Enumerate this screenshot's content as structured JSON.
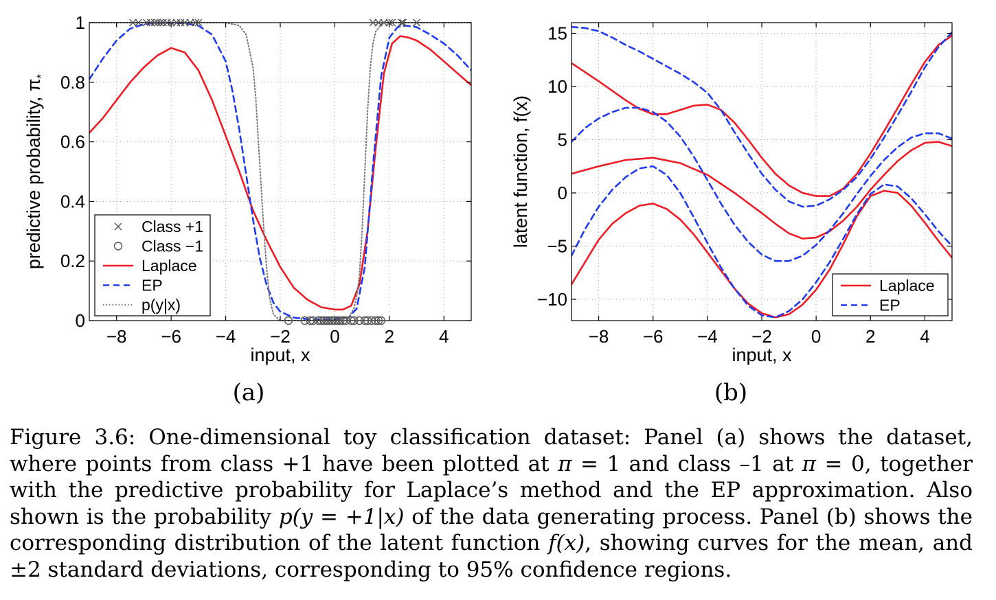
{
  "colors": {
    "laplace": "#ee1c25",
    "ep": "#1f3cf0",
    "true_prob": "#777777",
    "markers": "#555555"
  },
  "chart_data": [
    {
      "type": "line",
      "panel_label": "(a)",
      "xlabel": "input, x",
      "ylabel": "predictive probability, π",
      "ylabel_subscript": "*",
      "xlim": [
        -9,
        5
      ],
      "ylim": [
        0,
        1
      ],
      "xticks": [
        -8,
        -6,
        -4,
        -2,
        0,
        2,
        4
      ],
      "xtick_labels": [
        "−8",
        "−6",
        "−4",
        "−2",
        "0",
        "2",
        "4"
      ],
      "yticks": [
        0,
        0.2,
        0.4,
        0.6,
        0.8,
        1
      ],
      "ytick_labels": [
        "0",
        "0.2",
        "0.4",
        "0.6",
        "0.8",
        "1"
      ],
      "grid": true,
      "legend": {
        "placement": "bottom-left",
        "entries": [
          {
            "label": "Class +1",
            "style": "cross-marker"
          },
          {
            "label": "Class −1",
            "style": "circle-marker"
          },
          {
            "label": "Laplace",
            "style": "solid-red"
          },
          {
            "label": "EP",
            "style": "dashed-blue"
          },
          {
            "label": "p(y|x)",
            "style": "dotted-gray"
          }
        ]
      },
      "series": [
        {
          "name": "Laplace",
          "style": "solid-red",
          "x": [
            -9,
            -8.5,
            -8,
            -7.5,
            -7,
            -6.5,
            -6,
            -5.5,
            -5,
            -4.5,
            -4,
            -3.5,
            -3,
            -2.5,
            -2,
            -1.5,
            -1,
            -0.5,
            0,
            0.3,
            0.6,
            0.9,
            1.2,
            1.5,
            1.8,
            2.1,
            2.4,
            2.7,
            3,
            3.5,
            4,
            4.5,
            5
          ],
          "y": [
            0.63,
            0.68,
            0.74,
            0.8,
            0.85,
            0.89,
            0.915,
            0.9,
            0.84,
            0.74,
            0.62,
            0.5,
            0.37,
            0.27,
            0.18,
            0.11,
            0.07,
            0.045,
            0.037,
            0.037,
            0.05,
            0.12,
            0.3,
            0.58,
            0.83,
            0.93,
            0.955,
            0.95,
            0.94,
            0.91,
            0.87,
            0.83,
            0.79
          ]
        },
        {
          "name": "EP",
          "style": "dashed-blue",
          "x": [
            -9,
            -8.5,
            -8,
            -7.5,
            -7,
            -6.5,
            -6,
            -5.5,
            -5,
            -4.5,
            -4,
            -3.75,
            -3.5,
            -3.25,
            -3,
            -2.75,
            -2.5,
            -2.25,
            -2,
            -1.5,
            -1,
            -0.5,
            0,
            0.5,
            0.8,
            1.1,
            1.4,
            1.7,
            2,
            2.3,
            2.6,
            3,
            3.5,
            4,
            4.5,
            5
          ],
          "y": [
            0.81,
            0.88,
            0.94,
            0.98,
            0.995,
            0.999,
            0.999,
            0.998,
            0.99,
            0.96,
            0.87,
            0.77,
            0.64,
            0.49,
            0.34,
            0.21,
            0.12,
            0.06,
            0.03,
            0.01,
            0.005,
            0.004,
            0.006,
            0.01,
            0.04,
            0.18,
            0.52,
            0.82,
            0.95,
            0.985,
            0.99,
            0.985,
            0.96,
            0.93,
            0.89,
            0.84
          ]
        },
        {
          "name": "p(y|x)",
          "style": "dotted-gray",
          "x": [
            -9,
            -4.5,
            -4,
            -3.5,
            -3.25,
            -3,
            -2.9,
            -2.8,
            -2.7,
            -2.6,
            -2.5,
            -2.4,
            -2.25,
            -2,
            -1,
            0,
            0.5,
            0.7,
            0.8,
            0.9,
            1,
            1.1,
            1.2,
            1.3,
            1.4,
            1.5,
            1.75,
            2,
            5
          ],
          "y": [
            1,
            1,
            1,
            0.99,
            0.96,
            0.85,
            0.75,
            0.6,
            0.45,
            0.3,
            0.18,
            0.08,
            0.02,
            0,
            0,
            0,
            0.01,
            0.04,
            0.08,
            0.15,
            0.3,
            0.5,
            0.7,
            0.85,
            0.93,
            0.97,
            1,
            1,
            1
          ]
        },
        {
          "name": "Class +1",
          "style": "cross-marker",
          "x": [
            -7.4,
            -7.2,
            -6.9,
            -6.75,
            -6.6,
            -6.5,
            -6.4,
            -6.3,
            -6.15,
            -6.0,
            -5.8,
            -5.65,
            -5.5,
            -5.3,
            -5.1,
            -5.0,
            1.4,
            1.6,
            1.8,
            2.0,
            2.1,
            2.45,
            2.5,
            3.0
          ],
          "y": [
            1,
            1,
            1,
            1,
            1,
            1,
            1,
            1,
            1,
            1,
            1,
            1,
            1,
            1,
            1,
            1,
            1,
            1,
            1,
            1,
            1,
            1,
            1,
            1
          ]
        },
        {
          "name": "Class −1",
          "style": "circle-marker",
          "x": [
            -1.7,
            -1.1,
            -0.9,
            -0.8,
            -0.6,
            -0.5,
            -0.4,
            -0.3,
            -0.2,
            -0.1,
            0.0,
            0.1,
            0.2,
            0.3,
            0.4,
            0.6,
            0.7,
            0.9,
            1.1,
            1.2,
            1.35,
            1.5,
            1.6,
            1.7
          ],
          "y": [
            0,
            0,
            0,
            0,
            0,
            0,
            0,
            0,
            0,
            0,
            0,
            0,
            0,
            0,
            0,
            0,
            0,
            0,
            0,
            0,
            0,
            0,
            0,
            0
          ]
        }
      ]
    },
    {
      "type": "line",
      "panel_label": "(b)",
      "xlabel": "input, x",
      "ylabel": "latent function, f(x)",
      "xlim": [
        -9,
        5
      ],
      "ylim": [
        -12,
        16
      ],
      "xticks": [
        -8,
        -6,
        -4,
        -2,
        0,
        2,
        4
      ],
      "xtick_labels": [
        "−8",
        "−6",
        "−4",
        "−2",
        "0",
        "2",
        "4"
      ],
      "yticks": [
        -10,
        -5,
        0,
        5,
        10,
        15
      ],
      "ytick_labels": [
        "−10",
        "−5",
        "0",
        "5",
        "10",
        "15"
      ],
      "grid": true,
      "legend": {
        "placement": "bottom-right",
        "entries": [
          {
            "label": "Laplace",
            "style": "solid-red"
          },
          {
            "label": "EP",
            "style": "dashed-blue"
          }
        ]
      },
      "series": [
        {
          "name": "Laplace",
          "style": "solid-red",
          "role": "upper",
          "x": [
            -9,
            -8,
            -7,
            -6.5,
            -6,
            -5.5,
            -5,
            -4.5,
            -4,
            -3.5,
            -3,
            -2.5,
            -2,
            -1.5,
            -1,
            -0.5,
            0,
            0.5,
            1,
            1.5,
            2,
            2.5,
            3,
            3.5,
            4,
            4.5,
            5
          ],
          "y": [
            12.2,
            10.5,
            8.7,
            7.9,
            7.4,
            7.4,
            7.8,
            8.2,
            8.3,
            7.8,
            6.6,
            5.0,
            3.3,
            1.8,
            0.7,
            0.0,
            -0.3,
            -0.3,
            0.4,
            1.8,
            3.7,
            5.8,
            8.0,
            10.2,
            12.3,
            13.9,
            14.8
          ]
        },
        {
          "name": "Laplace",
          "style": "solid-red",
          "role": "mean",
          "x": [
            -9,
            -8,
            -7,
            -6,
            -5,
            -4,
            -3,
            -2,
            -1.5,
            -1,
            -0.5,
            0,
            0.5,
            1,
            1.5,
            2,
            2.5,
            3,
            3.5,
            4,
            4.5,
            5
          ],
          "y": [
            1.8,
            2.5,
            3.1,
            3.3,
            2.8,
            1.7,
            0.0,
            -1.9,
            -2.9,
            -3.8,
            -4.3,
            -4.2,
            -3.6,
            -2.6,
            -1.3,
            0.3,
            1.7,
            3.0,
            4.0,
            4.7,
            4.8,
            4.4
          ]
        },
        {
          "name": "Laplace",
          "style": "solid-red",
          "role": "lower",
          "x": [
            -9,
            -8.5,
            -8,
            -7.5,
            -7,
            -6.5,
            -6,
            -5.5,
            -5,
            -4.5,
            -4,
            -3.5,
            -3,
            -2.5,
            -2,
            -1.5,
            -1,
            -0.5,
            0,
            0.5,
            1,
            1.5,
            2,
            2.5,
            3,
            3.5,
            4,
            4.5,
            5
          ],
          "y": [
            -8.6,
            -6.5,
            -4.4,
            -2.9,
            -1.9,
            -1.2,
            -1.0,
            -1.5,
            -2.5,
            -3.9,
            -5.6,
            -7.3,
            -9.0,
            -10.4,
            -11.3,
            -11.7,
            -11.4,
            -10.5,
            -9.1,
            -7.2,
            -4.8,
            -2.2,
            -0.3,
            0.2,
            0.0,
            -1.2,
            -2.8,
            -4.5,
            -6.1
          ]
        },
        {
          "name": "EP",
          "style": "dashed-blue",
          "role": "upper",
          "x": [
            -9,
            -8.5,
            -8,
            -7.5,
            -7,
            -6.5,
            -6,
            -5.5,
            -5,
            -4.5,
            -4,
            -3.5,
            -3,
            -2.5,
            -2,
            -1.5,
            -1,
            -0.5,
            0,
            0.5,
            1,
            1.5,
            2,
            2.5,
            3,
            3.5,
            4,
            4.5,
            5
          ],
          "y": [
            15.6,
            15.5,
            15.2,
            14.6,
            13.9,
            13.3,
            12.6,
            11.9,
            11.2,
            10.4,
            9.4,
            7.8,
            5.7,
            3.7,
            1.8,
            0.3,
            -0.8,
            -1.3,
            -1.2,
            -0.6,
            0.3,
            1.5,
            3.2,
            5.2,
            7.3,
            9.5,
            11.8,
            13.7,
            15.1
          ]
        },
        {
          "name": "EP",
          "style": "dashed-blue",
          "role": "mean",
          "x": [
            -9,
            -8.5,
            -8,
            -7.5,
            -7,
            -6.5,
            -6,
            -5.5,
            -5,
            -4.5,
            -4,
            -3.5,
            -3,
            -2.5,
            -2,
            -1.5,
            -1,
            -0.5,
            0,
            0.5,
            1,
            1.5,
            2,
            2.5,
            3,
            3.5,
            4,
            4.5,
            5
          ],
          "y": [
            4.8,
            6.1,
            7.0,
            7.6,
            8.0,
            8.0,
            7.6,
            6.7,
            5.3,
            3.4,
            1.2,
            -1.0,
            -3.0,
            -4.6,
            -5.8,
            -6.4,
            -6.4,
            -5.9,
            -4.9,
            -3.5,
            -1.9,
            -0.1,
            1.6,
            3.1,
            4.3,
            5.2,
            5.6,
            5.6,
            5.1
          ]
        },
        {
          "name": "EP",
          "style": "dashed-blue",
          "role": "lower",
          "x": [
            -9,
            -8.5,
            -8,
            -7.5,
            -7,
            -6.5,
            -6,
            -5.5,
            -5,
            -4.5,
            -4,
            -3.5,
            -3,
            -2.5,
            -2,
            -1.5,
            -1,
            -0.5,
            0,
            0.5,
            1,
            1.5,
            2,
            2.5,
            3,
            3.5,
            4,
            4.5,
            5
          ],
          "y": [
            -5.9,
            -3.4,
            -1.3,
            0.3,
            1.5,
            2.3,
            2.5,
            1.7,
            0.0,
            -2.3,
            -4.7,
            -7.0,
            -9.0,
            -10.6,
            -11.5,
            -11.7,
            -11.1,
            -10.0,
            -8.4,
            -6.5,
            -4.3,
            -2.0,
            -0.1,
            0.8,
            0.6,
            -0.5,
            -2.0,
            -3.6,
            -5.0
          ]
        }
      ]
    }
  ],
  "caption": {
    "figure_label": "Figure 3.6:",
    "seg1": " One-dimensional toy classification dataset: Panel (a) shows the dataset, where points from class +1 have been plotted at ",
    "pi_1": "π",
    "seg2": " = 1 and class –1 at ",
    "pi_2": "π",
    "seg3": " = 0, together with the predictive probability for Laplace’s method and the EP approximation. Also shown is the probability ",
    "math_p": "p(y = +1|x)",
    "seg4": " of the data generating process. Panel (b) shows the corresponding distribution of the latent function ",
    "math_f": "f(x)",
    "seg5": ", showing curves for the mean, and ±2 standard deviations, corresponding to 95% confidence regions."
  }
}
